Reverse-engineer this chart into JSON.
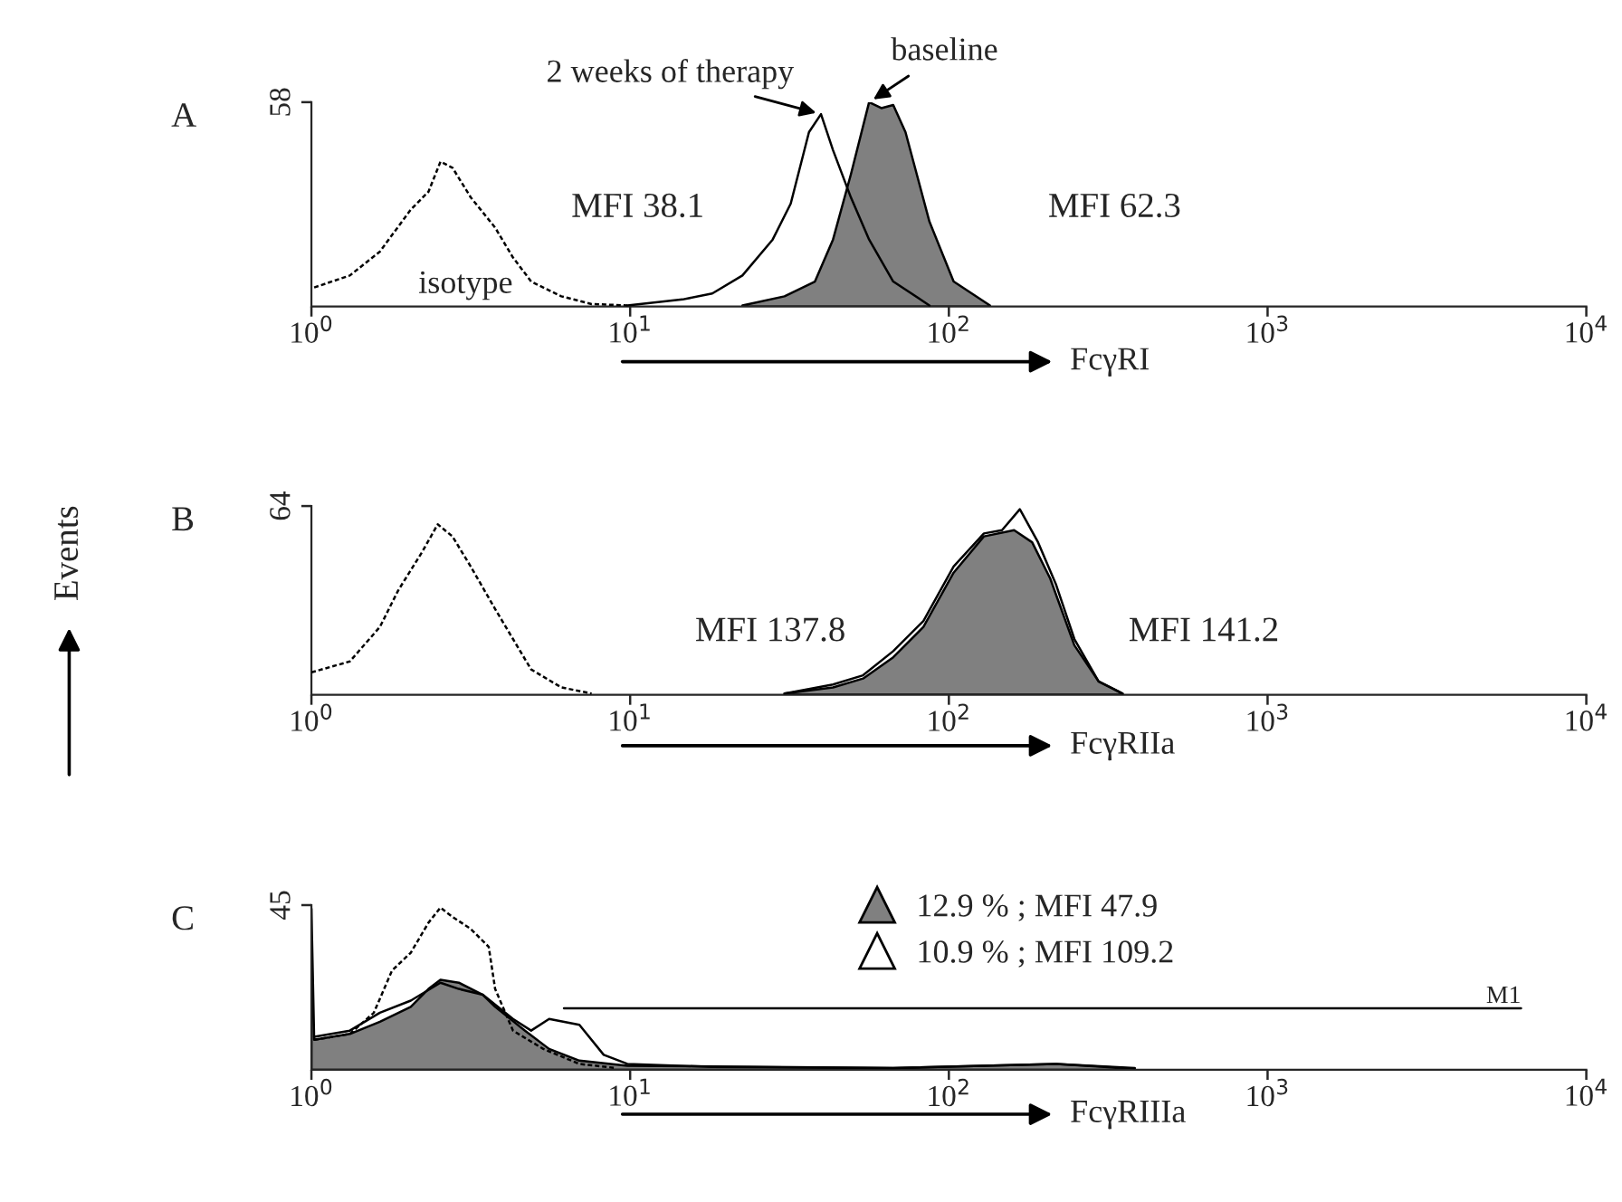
{
  "chart_data": [
    {
      "type": "area",
      "xlabel": "FcγRI",
      "log": "x",
      "xlim": [
        1,
        10000
      ],
      "ylim": [
        0,
        58
      ],
      "xticks": [
        {
          "value": 1,
          "label": "10$^{0}$"
        },
        {
          "value": 10,
          "label": "10$^{1}$"
        },
        {
          "value": 100,
          "label": "10$^{2}$"
        },
        {
          "value": 1000,
          "label": "10$^{3}$"
        },
        {
          "value": 10000,
          "label": "10$^{4}$"
        }
      ],
      "yticks": [
        58
      ],
      "grid": false,
      "legend": false,
      "annotations": [
        "A",
        "MFI 38.1",
        "MFI 62.3"
      ],
      "series": [
        {
          "name": "isotype",
          "type": "line",
          "line_style": "dashed",
          "color": "#000000",
          "x": [
            1.02,
            1.32,
            1.64,
            2.05,
            2.33,
            2.54,
            2.77,
            3.16,
            3.77,
            4.29,
            4.89,
            6.08,
            7.57,
            9.8
          ],
          "values": [
            5.4,
            8.8,
            15.6,
            27.5,
            32.6,
            41.1,
            39.4,
            31.0,
            22.4,
            13.9,
            7.1,
            2.9,
            0.7,
            0.3
          ]
        },
        {
          "name": "baseline",
          "color": "#808080",
          "x": [
            22.5,
            30.5,
            38.0,
            43.3,
            49.3,
            56.2,
            61.4,
            66.9,
            73.1,
            86.9,
            103.5,
            134.6
          ],
          "values": [
            0.3,
            2.9,
            7.1,
            19.0,
            37.6,
            58.0,
            56.3,
            57.2,
            49.5,
            24.1,
            7.1,
            0.3
          ]
        },
        {
          "name": "2 weeks of therapy",
          "type": "line",
          "line_style": "solid",
          "color": "#000000",
          "x": [
            9.8,
            14.6,
            18.1,
            22.5,
            28.0,
            31.9,
            36.4,
            39.7,
            43.3,
            49.3,
            56.2,
            66.9,
            86.9
          ],
          "values": [
            0.3,
            2.0,
            3.7,
            8.8,
            19.0,
            29.2,
            49.5,
            54.6,
            44.4,
            30.9,
            19.0,
            7.1,
            0.3
          ]
        }
      ]
    },
    {
      "type": "area",
      "xlabel": "FcγRIIa",
      "ylabel": "Events",
      "log": "x",
      "xlim": [
        1,
        10000
      ],
      "ylim": [
        0,
        64
      ],
      "xticks": [
        {
          "value": 1,
          "label": "10$^{0}$"
        },
        {
          "value": 10,
          "label": "10$^{1}$"
        },
        {
          "value": 100,
          "label": "10$^{2}$"
        },
        {
          "value": 1000,
          "label": "10$^{3}$"
        },
        {
          "value": 10000,
          "label": "10$^{4}$"
        }
      ],
      "yticks": [
        64
      ],
      "grid": false,
      "legend": false,
      "annotations": [
        "B",
        "MFI 137.8",
        "MFI 141.2"
      ],
      "series": [
        {
          "type": "line",
          "line_style": "dashed",
          "color": "#000000",
          "x": [
            1.0,
            1.32,
            1.64,
            1.87,
            2.23,
            2.49,
            2.77,
            3.16,
            3.77,
            4.29,
            4.89,
            6.08,
            7.57
          ],
          "values": [
            7.6,
            11.3,
            23.0,
            35.3,
            48.6,
            57.8,
            53.7,
            43.5,
            29.1,
            18.9,
            8.6,
            2.5,
            0.4
          ]
        },
        {
          "color": "#808080",
          "x": [
            30.5,
            43.3,
            53.8,
            66.9,
            83.2,
            103.5,
            128.8,
            160.2,
            182.5,
            208,
            247.6,
            295,
            351
          ],
          "values": [
            0.4,
            2.5,
            5.5,
            12.7,
            23.0,
            41.4,
            53.7,
            55.8,
            51.7,
            39.4,
            16.8,
            4.5,
            0.4
          ]
        },
        {
          "type": "line",
          "line_style": "solid",
          "color": "#000000",
          "x": [
            30.5,
            43.3,
            53.8,
            66.9,
            83.2,
            103.5,
            128.8,
            146.8,
            167,
            190.5,
            217,
            247.6,
            295,
            351
          ],
          "values": [
            0.4,
            3.5,
            6.6,
            14.8,
            25.0,
            43.5,
            54.7,
            55.8,
            62.9,
            51.7,
            37.3,
            18.9,
            4.5,
            0.4
          ]
        }
      ]
    },
    {
      "type": "area",
      "xlabel": "FcγRIIIa",
      "log": "x",
      "xlim": [
        1,
        10000
      ],
      "ylim": [
        0,
        45
      ],
      "xticks": [
        {
          "value": 1,
          "label": "10$^{0}$"
        },
        {
          "value": 10,
          "label": "10$^{1}$"
        },
        {
          "value": 100,
          "label": "10$^{2}$"
        },
        {
          "value": 1000,
          "label": "10$^{3}$"
        },
        {
          "value": 10000,
          "label": "10$^{4}$"
        }
      ],
      "yticks": [
        45
      ],
      "grid": false,
      "legend": "top",
      "annotations": [
        "C",
        {
          "text": "M1",
          "x": 6240,
          "y": 16.8
        }
      ],
      "series": [
        {
          "type": "line",
          "line_style": "solid",
          "color": "#000000",
          "x": [
            6.2,
            6240
          ],
          "values": [
            16.8,
            16.8
          ]
        },
        {
          "type": "line",
          "line_style": "dashed",
          "color": "#000000",
          "x": [
            1.02,
            1.32,
            1.57,
            1.79,
            2.05,
            2.33,
            2.54,
            2.77,
            3.16,
            3.6,
            3.77,
            4.29,
            5.34,
            6.93,
            9.0
          ],
          "values": [
            8.2,
            9.8,
            15.6,
            27.1,
            32.0,
            40.2,
            44.3,
            41.8,
            38.5,
            33.6,
            22.1,
            10.7,
            5.7,
            1.6,
            0.5
          ]
        },
        {
          "name": "12.9 % ; MFI 47.9",
          "color": "#808080",
          "x": [
            1.0,
            1.02,
            1.32,
            1.64,
            2.05,
            2.33,
            2.54,
            2.9,
            3.45,
            3.77,
            4.68,
            5.57,
            6.93,
            9.8,
            66.9,
            217,
            383
          ],
          "values": [
            44,
            8.2,
            9.8,
            13.1,
            17.2,
            22.1,
            24.6,
            23.8,
            20.5,
            17.2,
            10.7,
            5.7,
            2.5,
            1.1,
            0.5,
            1.6,
            0.3
          ]
        },
        {
          "name": "10.9 % ; MFI 109.2",
          "type": "line",
          "line_style": "solid",
          "color": "#000000",
          "x": [
            1.02,
            1.32,
            1.64,
            2.05,
            2.54,
            2.9,
            3.45,
            4.29,
            4.89,
            5.57,
            6.93,
            8.26,
            9.8,
            18.1,
            66.9,
            217,
            383
          ],
          "values": [
            9.0,
            10.7,
            15.6,
            18.9,
            23.8,
            22.1,
            20.5,
            13.9,
            10.7,
            13.9,
            12.3,
            4.1,
            1.6,
            0.8,
            0.5,
            1.6,
            0.5
          ]
        }
      ]
    }
  ]
}
